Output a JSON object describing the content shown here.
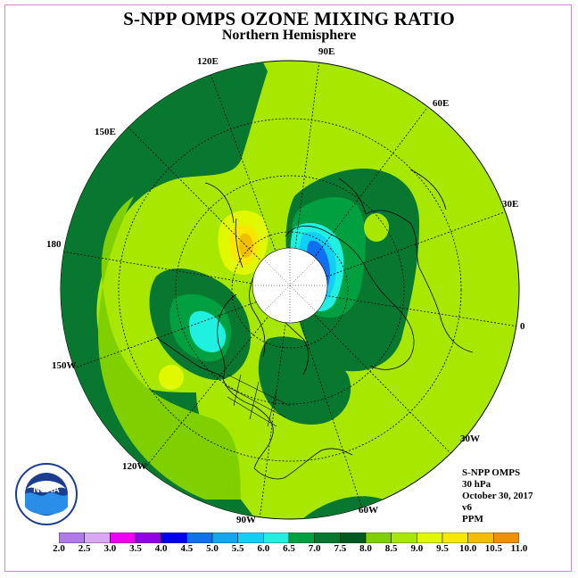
{
  "title": "S-NPP OMPS OZONE MIXING RATIO",
  "subtitle": "Northern Hemisphere",
  "longitude_labels": {
    "lon_90e": "90E",
    "lon_60e": "60E",
    "lon_30e": "30E",
    "lon_0": "0",
    "lon_30w": "30W",
    "lon_60w": "60W",
    "lon_90w": "90W",
    "lon_120w": "120W",
    "lon_150w": "150W",
    "lon_180": "180",
    "lon_150e": "150E",
    "lon_120e": "120E"
  },
  "info": {
    "instrument": "S-NPP OMPS",
    "pressure": "30 hPa",
    "date": "October 30, 2017",
    "version": "v6",
    "units": "PPM"
  },
  "logo_text": "NOAA",
  "colorbar": {
    "ticks": [
      "2.0",
      "2.5",
      "3.0",
      "3.5",
      "4.0",
      "4.5",
      "5.0",
      "5.5",
      "6.0",
      "6.5",
      "7.0",
      "7.5",
      "8.0",
      "8.5",
      "9.0",
      "9.5",
      "10.0",
      "10.5",
      "11.0"
    ],
    "colors": [
      "#b07ae8",
      "#d8a8f0",
      "#f000f0",
      "#9000e8",
      "#0000ee",
      "#1070f0",
      "#10a8f0",
      "#10d0f8",
      "#20f0e0",
      "#00a040",
      "#087830",
      "#005a20",
      "#80d000",
      "#a8e800",
      "#e0f800",
      "#f8e800",
      "#f0c000",
      "#f09000",
      "#f05000",
      "#e80000",
      "#805030"
    ]
  }
}
